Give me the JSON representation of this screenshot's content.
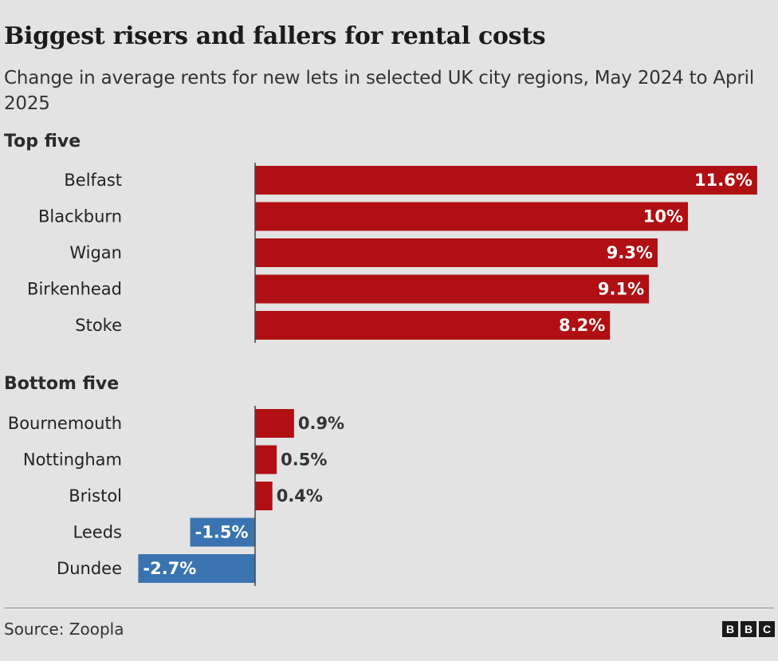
{
  "header": {
    "title": "Biggest risers and fallers for rental costs",
    "subtitle": "Change in average rents for new lets in selected UK city regions, May 2024 to April 2025"
  },
  "sections": {
    "top": "Top five",
    "bottom": "Bottom five"
  },
  "footer": {
    "source": "Source: Zoopla",
    "logo": [
      "B",
      "B",
      "C"
    ]
  },
  "colors": {
    "positive": "#b01013",
    "negative": "#3a74b0"
  },
  "chart_data": {
    "type": "bar",
    "orientation": "horizontal",
    "title": "Biggest risers and fallers for rental costs",
    "unit": "%",
    "groups": [
      {
        "name": "Top five",
        "categories": [
          "Belfast",
          "Blackburn",
          "Wigan",
          "Birkenhead",
          "Stoke"
        ],
        "values": [
          11.6,
          10,
          9.3,
          9.1,
          8.2
        ],
        "labels": [
          "11.6%",
          "10%",
          "9.3%",
          "9.1%",
          "8.2%"
        ]
      },
      {
        "name": "Bottom five",
        "categories": [
          "Bournemouth",
          "Nottingham",
          "Bristol",
          "Leeds",
          "Dundee"
        ],
        "values": [
          0.9,
          0.5,
          0.4,
          -1.5,
          -2.7
        ],
        "labels": [
          "0.9%",
          "0.5%",
          "0.4%",
          "-1.5%",
          "-2.7%"
        ]
      }
    ],
    "xlim": [
      -2.7,
      11.6
    ],
    "grid": false
  }
}
